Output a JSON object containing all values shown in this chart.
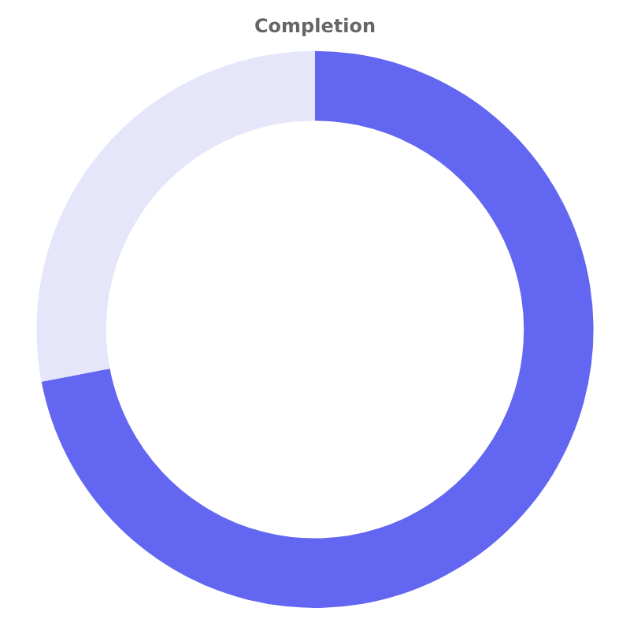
{
  "chart_data": {
    "type": "donut",
    "title": "Completion",
    "categories": [
      null,
      null
    ],
    "values": [
      72,
      28
    ],
    "colors": [
      "#6366f1",
      "#e6e6fa"
    ]
  }
}
